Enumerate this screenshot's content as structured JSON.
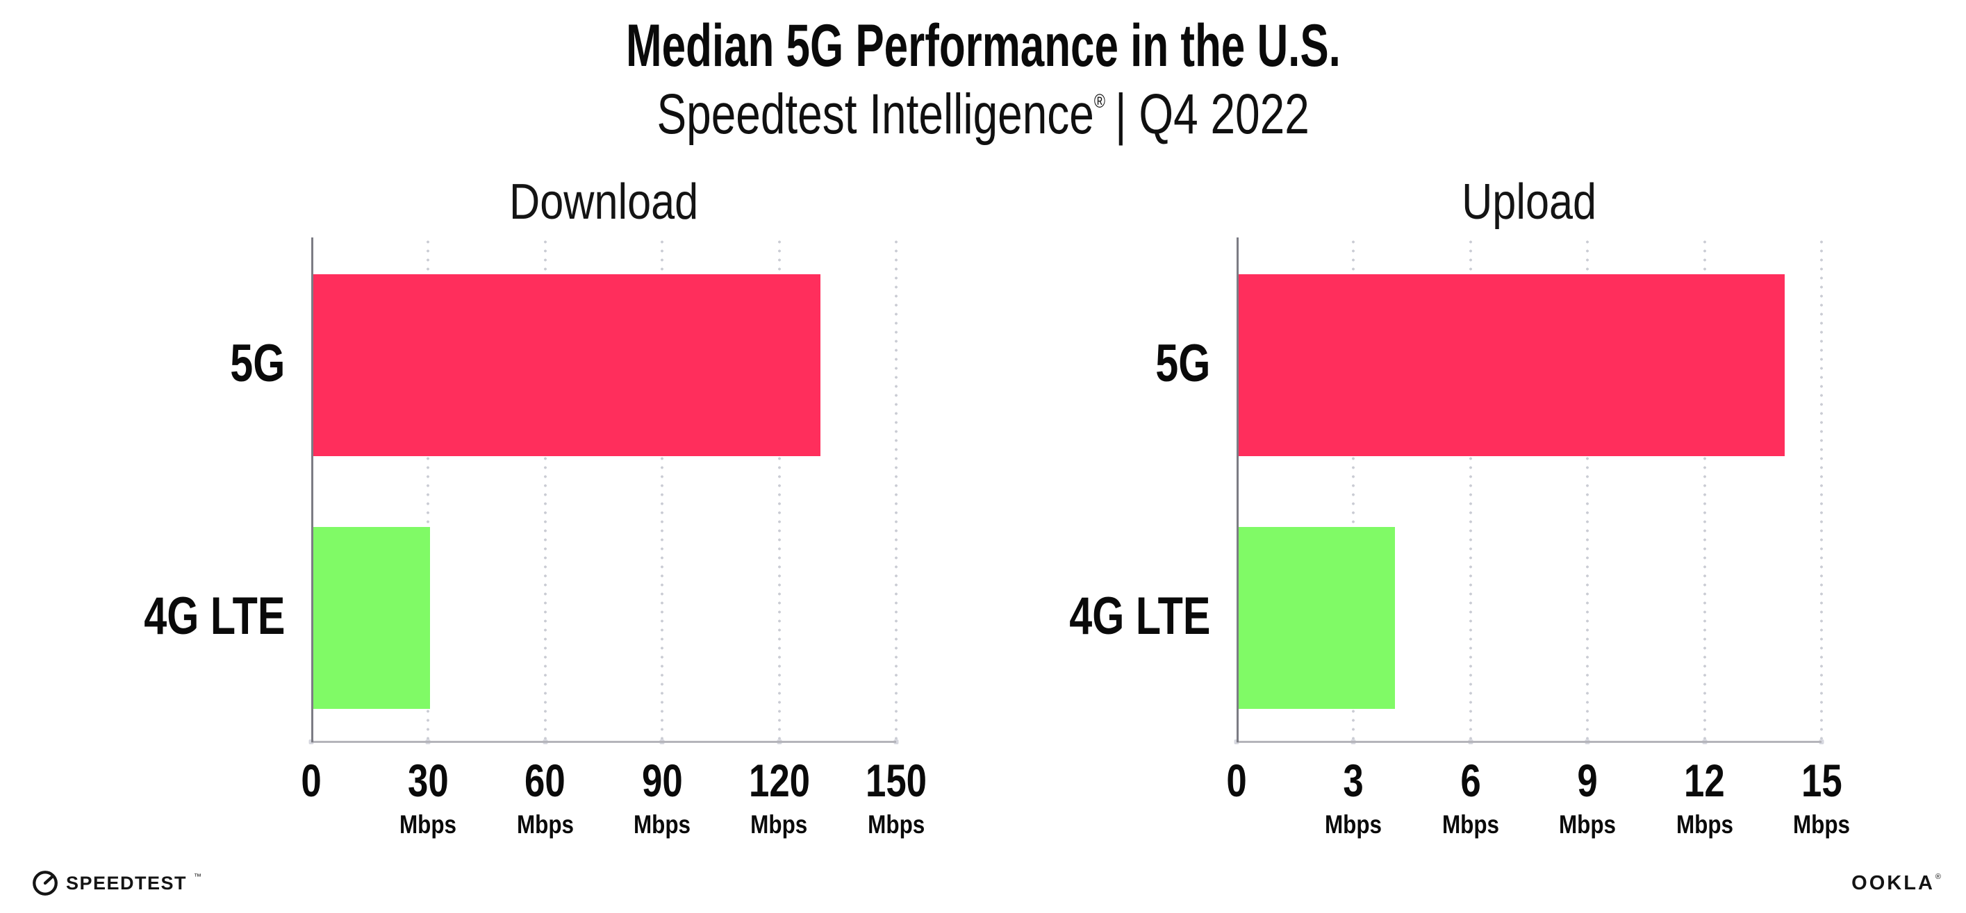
{
  "header": {
    "title": "Median 5G Performance in the U.S.",
    "subtitle_brand": "Speedtest Intelligence",
    "subtitle_reg": "®",
    "subtitle_rest": "| Q4 2022"
  },
  "chart_data": [
    {
      "type": "bar",
      "orientation": "horizontal",
      "title": "Download",
      "categories": [
        "5G",
        "4G LTE"
      ],
      "values": [
        130,
        30
      ],
      "unit": "Mbps",
      "xlabel": "",
      "xlim": [
        0,
        150
      ],
      "xticks": [
        0,
        30,
        60,
        90,
        120,
        150
      ],
      "bar_colors": [
        "#FF2E5C",
        "#80FA66"
      ],
      "grid": "vertical dotted",
      "legend": "none"
    },
    {
      "type": "bar",
      "orientation": "horizontal",
      "title": "Upload",
      "categories": [
        "5G",
        "4G LTE"
      ],
      "values": [
        14,
        4
      ],
      "unit": "Mbps",
      "xlabel": "",
      "xlim": [
        0,
        15
      ],
      "xticks": [
        0,
        3,
        6,
        9,
        12,
        15
      ],
      "bar_colors": [
        "#FF2E5C",
        "#80FA66"
      ],
      "grid": "vertical dotted",
      "legend": "none"
    }
  ],
  "footer": {
    "speedtest_label": "SPEEDTEST",
    "speedtest_tm": "™",
    "ookla_label": "OOKLA",
    "ookla_reg": "®"
  }
}
